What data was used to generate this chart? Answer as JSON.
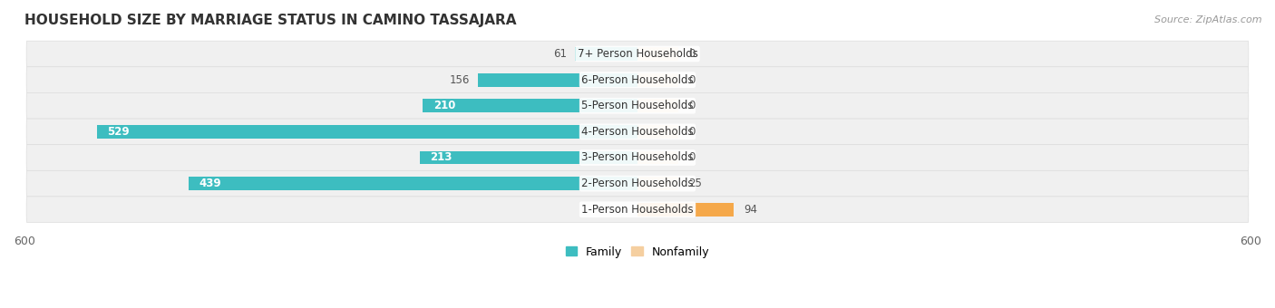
{
  "title": "HOUSEHOLD SIZE BY MARRIAGE STATUS IN CAMINO TASSAJARA",
  "source": "Source: ZipAtlas.com",
  "categories": [
    "7+ Person Households",
    "6-Person Households",
    "5-Person Households",
    "4-Person Households",
    "3-Person Households",
    "2-Person Households",
    "1-Person Households"
  ],
  "family_values": [
    61,
    156,
    210,
    529,
    213,
    439,
    0
  ],
  "nonfamily_values": [
    0,
    0,
    0,
    0,
    0,
    25,
    94
  ],
  "family_color": "#3DBDC0",
  "nonfamily_color_light": "#F5CFA0",
  "nonfamily_color_dark": "#F5A84A",
  "row_bg_color": "#F0F0F0",
  "row_border_color": "#DDDDDD",
  "xlim": 600,
  "bar_height": 0.52,
  "min_stub": 40,
  "title_fontsize": 11,
  "label_fontsize": 8.5,
  "value_fontsize": 8.5,
  "tick_fontsize": 9,
  "legend_fontsize": 9,
  "source_fontsize": 8
}
